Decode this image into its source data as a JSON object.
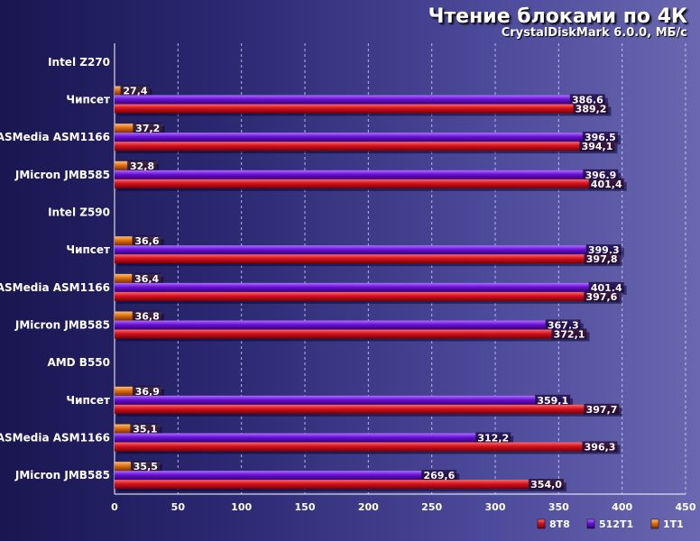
{
  "chart_data": {
    "type": "bar",
    "orientation": "horizontal",
    "title": "Чтение блоками по 4К",
    "subtitle": "CrystalDiskMark 6.0.0, МБ/с",
    "xlim": [
      0,
      450
    ],
    "xticks": [
      0,
      50,
      100,
      150,
      200,
      250,
      300,
      350,
      400,
      450
    ],
    "grid": true,
    "legend_position": "bottom-right",
    "colors": {
      "8T8": "#d4121c",
      "512T1": "#6a10d8",
      "1T1": "#e07010"
    },
    "series_names": [
      "8T8",
      "512T1",
      "1T1"
    ],
    "groups": [
      {
        "name": "Intel Z270",
        "items": [
          {
            "label": "Чипсет",
            "1T1": 27.4,
            "512T1": 386.6,
            "8T8": 389.2,
            "labels": [
              "27,4",
              "386,6",
              "389,2"
            ]
          },
          {
            "label": "ASMedia ASM1166",
            "1T1": 37.2,
            "512T1": 396.5,
            "8T8": 394.1,
            "labels": [
              "37,2",
              "396,5",
              "394,1"
            ]
          },
          {
            "label": "JMicron JMB585",
            "1T1": 32.8,
            "512T1": 396.9,
            "8T8": 401.4,
            "labels": [
              "32,8",
              "396,9",
              "401,4"
            ]
          }
        ]
      },
      {
        "name": "Intel Z590",
        "items": [
          {
            "label": "Чипсет",
            "1T1": 36.6,
            "512T1": 399.3,
            "8T8": 397.8,
            "labels": [
              "36,6",
              "399,3",
              "397,8"
            ]
          },
          {
            "label": "ASMedia ASM1166",
            "1T1": 36.4,
            "512T1": 401.4,
            "8T8": 397.6,
            "labels": [
              "36,4",
              "401,4",
              "397,6"
            ]
          },
          {
            "label": "JMicron JMB585",
            "1T1": 36.8,
            "512T1": 367.3,
            "8T8": 372.1,
            "labels": [
              "36,8",
              "367,3",
              "372,1"
            ]
          }
        ]
      },
      {
        "name": "AMD B550",
        "items": [
          {
            "label": "Чипсет",
            "1T1": 36.9,
            "512T1": 359.1,
            "8T8": 397.7,
            "labels": [
              "36,9",
              "359,1",
              "397,7"
            ]
          },
          {
            "label": "ASMedia ASM1166",
            "1T1": 35.1,
            "512T1": 312.2,
            "8T8": 396.3,
            "labels": [
              "35,1",
              "312,2",
              "396,3"
            ]
          },
          {
            "label": "JMicron JMB585",
            "1T1": 35.5,
            "512T1": 269.6,
            "8T8": 354.0,
            "labels": [
              "35,5",
              "269,6",
              "354,0"
            ]
          }
        ]
      }
    ]
  }
}
